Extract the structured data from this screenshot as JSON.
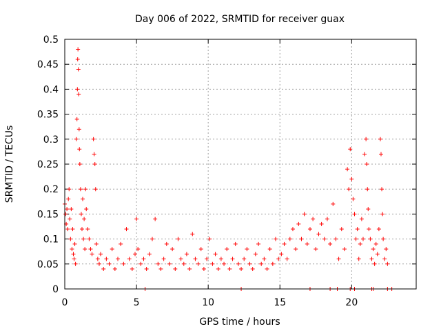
{
  "chart_data": {
    "type": "scatter",
    "title": "Day 006 of 2022, SRMTID for receiver guax",
    "xlabel": "GPS time / hours",
    "ylabel": "SRMTID / TECUs",
    "xlim": [
      0,
      24.5
    ],
    "ylim": [
      0,
      0.5
    ],
    "x_ticks": [
      0,
      5,
      10,
      15,
      20
    ],
    "y_ticks": [
      0,
      0.05,
      0.1,
      0.15,
      0.2,
      0.25,
      0.3,
      0.35,
      0.4,
      0.45,
      0.5
    ],
    "x_tick_labels": [
      "0",
      "5",
      "10",
      "15",
      "20"
    ],
    "y_tick_labels": [
      "0",
      "0.05",
      "0.1",
      "0.15",
      "0.2",
      "0.25",
      "0.3",
      "0.35",
      "0.4",
      "0.45",
      "0.5"
    ],
    "grid": true,
    "marker": "+",
    "series": [
      {
        "name": "SRMTID",
        "color": "#ff0000",
        "points": [
          [
            0.0,
            0.17
          ],
          [
            0.05,
            0.15
          ],
          [
            0.1,
            0.13
          ],
          [
            0.15,
            0.16
          ],
          [
            0.2,
            0.12
          ],
          [
            0.25,
            0.18
          ],
          [
            0.3,
            0.2
          ],
          [
            0.35,
            0.14
          ],
          [
            0.4,
            0.1
          ],
          [
            0.45,
            0.16
          ],
          [
            0.5,
            0.08
          ],
          [
            0.55,
            0.12
          ],
          [
            0.6,
            0.07
          ],
          [
            0.65,
            0.06
          ],
          [
            0.7,
            0.09
          ],
          [
            0.75,
            0.05
          ],
          [
            0.8,
            0.3
          ],
          [
            0.85,
            0.34
          ],
          [
            0.88,
            0.4
          ],
          [
            0.9,
            0.46
          ],
          [
            0.92,
            0.48
          ],
          [
            0.95,
            0.44
          ],
          [
            0.97,
            0.39
          ],
          [
            1.0,
            0.32
          ],
          [
            1.02,
            0.28
          ],
          [
            1.05,
            0.25
          ],
          [
            1.1,
            0.2
          ],
          [
            1.15,
            0.15
          ],
          [
            1.2,
            0.12
          ],
          [
            1.25,
            0.18
          ],
          [
            1.3,
            0.1
          ],
          [
            1.35,
            0.14
          ],
          [
            1.4,
            0.08
          ],
          [
            1.45,
            0.2
          ],
          [
            1.5,
            0.16
          ],
          [
            1.6,
            0.12
          ],
          [
            1.7,
            0.1
          ],
          [
            1.8,
            0.08
          ],
          [
            1.9,
            0.07
          ],
          [
            2.0,
            0.3
          ],
          [
            2.05,
            0.27
          ],
          [
            2.1,
            0.25
          ],
          [
            2.15,
            0.2
          ],
          [
            2.2,
            0.09
          ],
          [
            2.3,
            0.06
          ],
          [
            2.4,
            0.05
          ],
          [
            2.5,
            0.07
          ],
          [
            2.7,
            0.04
          ],
          [
            2.9,
            0.06
          ],
          [
            3.1,
            0.05
          ],
          [
            3.3,
            0.08
          ],
          [
            3.5,
            0.04
          ],
          [
            3.7,
            0.06
          ],
          [
            3.9,
            0.09
          ],
          [
            4.1,
            0.05
          ],
          [
            4.3,
            0.12
          ],
          [
            4.5,
            0.06
          ],
          [
            4.7,
            0.04
          ],
          [
            4.9,
            0.07
          ],
          [
            5.0,
            0.14
          ],
          [
            5.1,
            0.08
          ],
          [
            5.3,
            0.05
          ],
          [
            5.5,
            0.06
          ],
          [
            5.7,
            0.04
          ],
          [
            5.9,
            0.07
          ],
          [
            6.1,
            0.1
          ],
          [
            6.3,
            0.14
          ],
          [
            6.5,
            0.05
          ],
          [
            6.7,
            0.04
          ],
          [
            6.9,
            0.06
          ],
          [
            7.1,
            0.09
          ],
          [
            7.3,
            0.05
          ],
          [
            7.5,
            0.08
          ],
          [
            7.7,
            0.04
          ],
          [
            7.9,
            0.1
          ],
          [
            8.1,
            0.06
          ],
          [
            8.3,
            0.05
          ],
          [
            8.5,
            0.07
          ],
          [
            8.7,
            0.04
          ],
          [
            8.9,
            0.11
          ],
          [
            9.1,
            0.06
          ],
          [
            9.3,
            0.05
          ],
          [
            9.5,
            0.08
          ],
          [
            9.7,
            0.04
          ],
          [
            9.9,
            0.06
          ],
          [
            10.1,
            0.1
          ],
          [
            10.3,
            0.05
          ],
          [
            10.5,
            0.07
          ],
          [
            10.7,
            0.04
          ],
          [
            10.9,
            0.06
          ],
          [
            11.1,
            0.05
          ],
          [
            11.3,
            0.08
          ],
          [
            11.5,
            0.04
          ],
          [
            11.7,
            0.06
          ],
          [
            11.9,
            0.09
          ],
          [
            12.1,
            0.05
          ],
          [
            12.3,
            0.04
          ],
          [
            12.5,
            0.06
          ],
          [
            12.7,
            0.08
          ],
          [
            12.9,
            0.05
          ],
          [
            13.1,
            0.04
          ],
          [
            13.3,
            0.07
          ],
          [
            13.5,
            0.09
          ],
          [
            13.7,
            0.05
          ],
          [
            13.9,
            0.06
          ],
          [
            14.1,
            0.04
          ],
          [
            14.3,
            0.08
          ],
          [
            14.5,
            0.05
          ],
          [
            14.7,
            0.1
          ],
          [
            14.9,
            0.06
          ],
          [
            15.1,
            0.07
          ],
          [
            15.3,
            0.09
          ],
          [
            15.5,
            0.06
          ],
          [
            15.7,
            0.1
          ],
          [
            15.9,
            0.12
          ],
          [
            16.1,
            0.08
          ],
          [
            16.3,
            0.13
          ],
          [
            16.5,
            0.1
          ],
          [
            16.7,
            0.15
          ],
          [
            16.9,
            0.09
          ],
          [
            17.1,
            0.12
          ],
          [
            17.3,
            0.14
          ],
          [
            17.5,
            0.08
          ],
          [
            17.7,
            0.11
          ],
          [
            17.9,
            0.13
          ],
          [
            18.1,
            0.1
          ],
          [
            18.3,
            0.14
          ],
          [
            18.5,
            0.09
          ],
          [
            18.7,
            0.17
          ],
          [
            18.9,
            0.1
          ],
          [
            19.1,
            0.06
          ],
          [
            19.3,
            0.12
          ],
          [
            19.5,
            0.08
          ],
          [
            19.7,
            0.24
          ],
          [
            19.8,
            0.2
          ],
          [
            19.9,
            0.28
          ],
          [
            20.0,
            0.22
          ],
          [
            20.1,
            0.18
          ],
          [
            20.2,
            0.15
          ],
          [
            20.3,
            0.1
          ],
          [
            20.4,
            0.12
          ],
          [
            20.5,
            0.06
          ],
          [
            20.6,
            0.09
          ],
          [
            20.7,
            0.14
          ],
          [
            20.8,
            0.1
          ],
          [
            20.9,
            0.27
          ],
          [
            21.0,
            0.3
          ],
          [
            21.05,
            0.25
          ],
          [
            21.1,
            0.2
          ],
          [
            21.15,
            0.16
          ],
          [
            21.2,
            0.12
          ],
          [
            21.3,
            0.1
          ],
          [
            21.4,
            0.06
          ],
          [
            21.5,
            0.08
          ],
          [
            21.6,
            0.05
          ],
          [
            21.7,
            0.09
          ],
          [
            21.8,
            0.07
          ],
          [
            21.9,
            0.12
          ],
          [
            22.0,
            0.3
          ],
          [
            22.05,
            0.27
          ],
          [
            22.1,
            0.2
          ],
          [
            22.15,
            0.15
          ],
          [
            22.2,
            0.1
          ],
          [
            22.3,
            0.06
          ],
          [
            22.4,
            0.08
          ],
          [
            22.5,
            0.05
          ],
          [
            5.6,
            0.0
          ],
          [
            12.3,
            0.0
          ],
          [
            17.1,
            0.0
          ],
          [
            18.5,
            0.0
          ],
          [
            19.0,
            0.0
          ],
          [
            19.9,
            0.0
          ],
          [
            20.2,
            0.0
          ],
          [
            21.4,
            0.0
          ],
          [
            21.5,
            0.0
          ],
          [
            22.5,
            0.0
          ],
          [
            22.8,
            0.0
          ]
        ]
      }
    ]
  }
}
